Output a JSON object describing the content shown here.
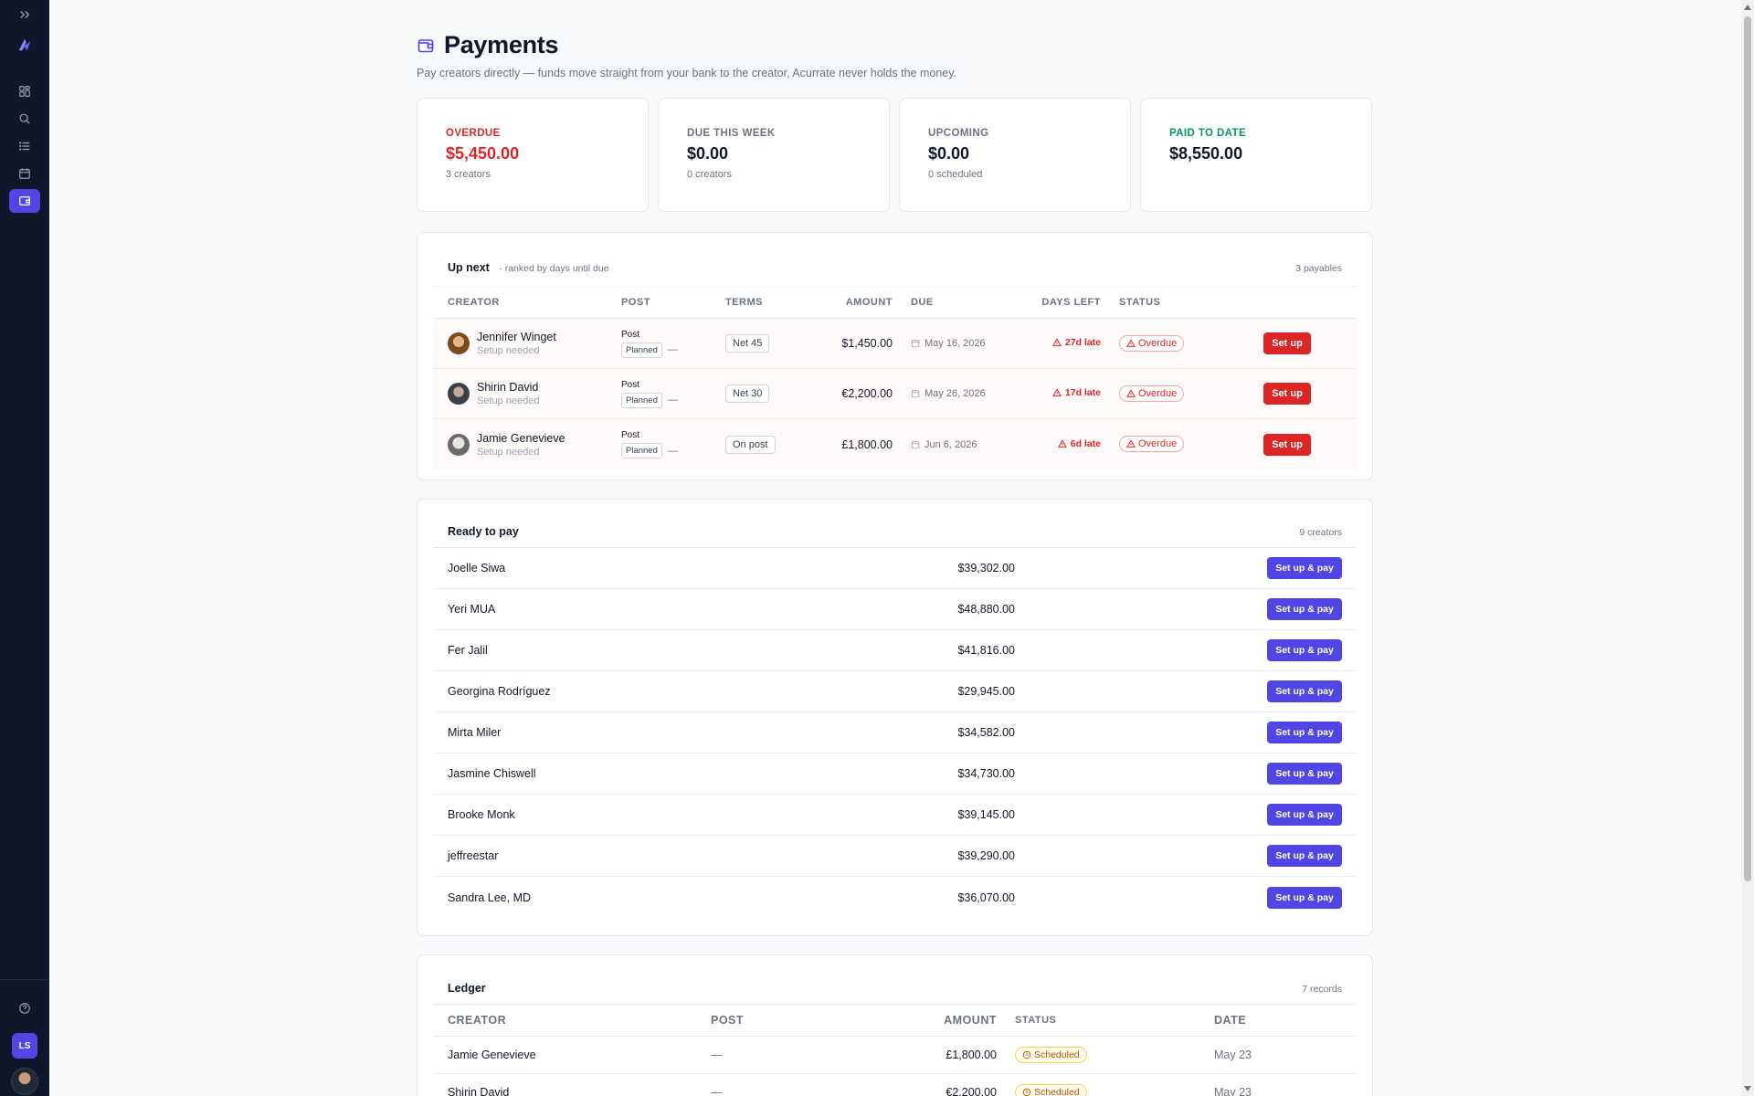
{
  "sidebar": {
    "nav": [
      {
        "icon": "dashboard-icon"
      },
      {
        "icon": "search-icon"
      },
      {
        "icon": "list-icon"
      },
      {
        "icon": "calendar-icon"
      },
      {
        "icon": "wallet-icon",
        "active": true
      }
    ],
    "user_initials": "LS"
  },
  "page": {
    "title": "Payments",
    "subtitle": "Pay creators directly — funds move straight from your bank to the creator, Acurrate never holds the money."
  },
  "stats": [
    {
      "label": "OVERDUE",
      "value": "$5,450.00",
      "sub": "3 creators",
      "tone": "red"
    },
    {
      "label": "DUE THIS WEEK",
      "value": "$0.00",
      "sub": "0 creators",
      "tone": "neutral"
    },
    {
      "label": "UPCOMING",
      "value": "$0.00",
      "sub": "0 scheduled",
      "tone": "neutral"
    },
    {
      "label": "PAID TO DATE",
      "value": "$8,550.00",
      "sub": "",
      "tone": "green"
    }
  ],
  "up_next": {
    "title": "Up next",
    "hint": "· ranked by days until due",
    "count": "3 payables",
    "columns": [
      "CREATOR",
      "POST",
      "TERMS",
      "AMOUNT",
      "DUE",
      "DAYS LEFT",
      "STATUS"
    ],
    "rows": [
      {
        "name": "Jennifer Winget",
        "sub": "Setup needed",
        "post": "Post",
        "post_status": "Planned",
        "post_dash": "—",
        "terms": "Net 45",
        "amount": "$1,450.00",
        "due": "May 16, 2026",
        "days": "27d late",
        "status": "Overdue",
        "action": "Set up"
      },
      {
        "name": "Shirin David",
        "sub": "Setup needed",
        "post": "Post",
        "post_status": "Planned",
        "post_dash": "—",
        "terms": "Net 30",
        "amount": "€2,200.00",
        "due": "May 26, 2026",
        "days": "17d late",
        "status": "Overdue",
        "action": "Set up"
      },
      {
        "name": "Jamie Genevieve",
        "sub": "Setup needed",
        "post": "Post",
        "post_status": "Planned",
        "post_dash": "—",
        "terms": "On post",
        "amount": "£1,800.00",
        "due": "Jun 6, 2026",
        "days": "6d late",
        "status": "Overdue",
        "action": "Set up"
      }
    ]
  },
  "ready_to_pay": {
    "title": "Ready to pay",
    "count": "9 creators",
    "button_label": "Set up & pay",
    "rows": [
      {
        "name": "Joelle Siwa",
        "amount": "$39,302.00"
      },
      {
        "name": "Yeri MUA",
        "amount": "$48,880.00"
      },
      {
        "name": "Fer Jalil",
        "amount": "$41,816.00"
      },
      {
        "name": "Georgina Rodríguez",
        "amount": "$29,945.00"
      },
      {
        "name": "Mirta Miler",
        "amount": "$34,582.00"
      },
      {
        "name": "Jasmine Chiswell",
        "amount": "$34,730.00"
      },
      {
        "name": "Brooke Monk",
        "amount": "$39,145.00"
      },
      {
        "name": "jeffreestar",
        "amount": "$39,290.00"
      },
      {
        "name": "Sandra Lee, MD",
        "amount": "$36,070.00"
      }
    ]
  },
  "ledger": {
    "title": "Ledger",
    "count": "7 records",
    "columns": [
      "CREATOR",
      "POST",
      "AMOUNT",
      "STATUS",
      "DATE"
    ],
    "rows": [
      {
        "creator": "Jamie Genevieve",
        "post": "—",
        "amount": "£1,800.00",
        "status": "Scheduled",
        "date": "May 23"
      },
      {
        "creator": "Shirin David",
        "post": "—",
        "amount": "€2,200.00",
        "status": "Scheduled",
        "date": "May 23"
      }
    ]
  }
}
